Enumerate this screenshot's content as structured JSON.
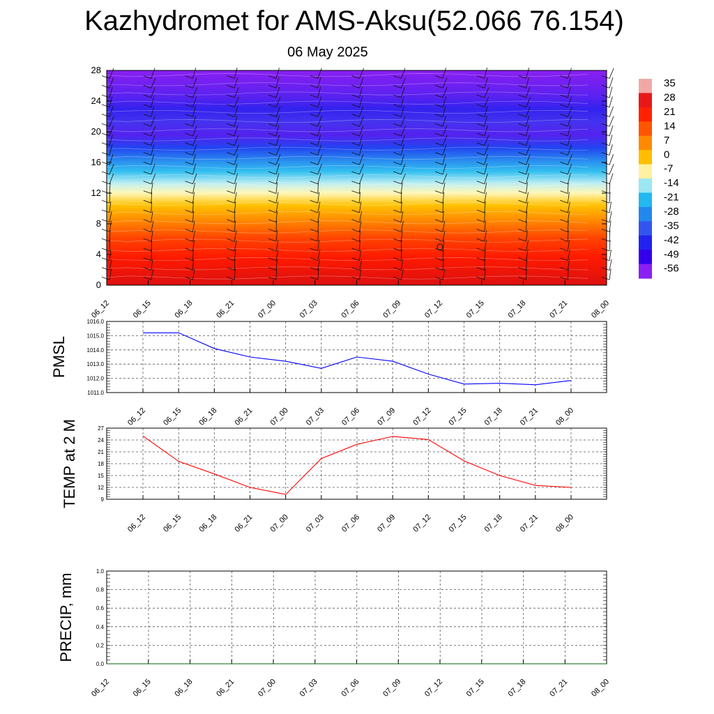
{
  "title": "Kazhydromet for AMS-Aksu(52.066 76.154)",
  "subtitle": "06 May 2025",
  "colors": {
    "pmsl_line": "#0000ff",
    "temp_line": "#ff0000",
    "precip_line": "#006400"
  },
  "chart_data": [
    {
      "type": "heatmap",
      "name": "temperature-height cross section with wind barbs",
      "categories": [
        "06_12",
        "06_15",
        "06_18",
        "06_21",
        "07_00",
        "07_03",
        "07_06",
        "07_09",
        "07_12",
        "07_15",
        "07_18",
        "07_21",
        "08_00"
      ],
      "y_ticks": [
        "0",
        "4",
        "8",
        "12",
        "16",
        "20",
        "24",
        "28"
      ],
      "ylim": [
        0,
        28
      ],
      "colorbar": {
        "labels": [
          "35",
          "28",
          "21",
          "14",
          "7",
          "0",
          "-7",
          "-14",
          "-21",
          "-28",
          "-35",
          "-42",
          "-49",
          "-56"
        ],
        "colors": [
          "#f2a7a7",
          "#e81818",
          "#ff2200",
          "#ff5500",
          "#ff8a00",
          "#ffbf00",
          "#fff1a0",
          "#9be7f2",
          "#22b8f0",
          "#2288ee",
          "#3355ee",
          "#2222ee",
          "#3300ee",
          "#8a1ff2"
        ]
      }
    },
    {
      "type": "line",
      "ylabel": "PMSL",
      "categories": [
        "06_12",
        "06_15",
        "06_18",
        "06_21",
        "07_00",
        "07_03",
        "07_06",
        "07_09",
        "07_12",
        "07_15",
        "07_18",
        "07_21",
        "08_00"
      ],
      "values": [
        1015.2,
        1015.2,
        1014.1,
        1013.5,
        1013.2,
        1012.7,
        1013.5,
        1013.2,
        1012.3,
        1011.6,
        1011.65,
        1011.55,
        1011.85
      ],
      "ylim": [
        1011.0,
        1016.0
      ],
      "y_ticks": [
        "1011.0",
        "1012.0",
        "1013.0",
        "1014.0",
        "1015.0",
        "1016.0"
      ]
    },
    {
      "type": "line",
      "ylabel": "TEMP at 2 M",
      "categories": [
        "06_12",
        "06_15",
        "06_18",
        "06_21",
        "07_00",
        "07_03",
        "07_06",
        "07_09",
        "07_12",
        "07_15",
        "07_18",
        "07_21",
        "08_00"
      ],
      "values": [
        25.0,
        18.6,
        15.4,
        12.0,
        10.2,
        19.3,
        22.9,
        24.9,
        24.1,
        18.7,
        15.0,
        12.5,
        12.0
      ],
      "ylim": [
        9,
        27
      ],
      "y_ticks": [
        "9",
        "12",
        "15",
        "18",
        "21",
        "24",
        "27"
      ]
    },
    {
      "type": "line",
      "ylabel": "PRECIP, mm",
      "categories": [
        "06_12",
        "06_15",
        "06_18",
        "06_21",
        "07_00",
        "07_03",
        "07_06",
        "07_09",
        "07_12",
        "07_15",
        "07_18",
        "07_21",
        "08_00"
      ],
      "values": [
        0,
        0,
        0,
        0,
        0,
        0,
        0,
        0,
        0,
        0,
        0,
        0,
        0
      ],
      "ylim": [
        0.0,
        1.0
      ],
      "y_ticks": [
        "0.0",
        "0.2",
        "0.4",
        "0.6",
        "0.8",
        "1.0"
      ]
    }
  ]
}
